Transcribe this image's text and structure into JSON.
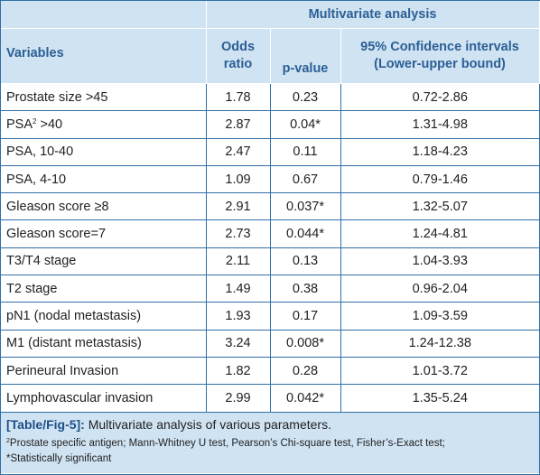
{
  "header": {
    "group_title": "Multivariate analysis",
    "col_variables": "Variables",
    "col_odds_line1": "Odds",
    "col_odds_line2": "ratio",
    "col_pvalue": "p-value",
    "col_ci_line1": "95% Confidence intervals",
    "col_ci_line2": "(Lower-upper bound)"
  },
  "rows": [
    {
      "variable": "Prostate size >45",
      "odds": "1.78",
      "p": "0.23",
      "ci": "0.72-2.86"
    },
    {
      "variable": "PSA",
      "sup": "2",
      "suffix": " >40",
      "odds": "2.87",
      "p": "0.04*",
      "ci": "1.31-4.98"
    },
    {
      "variable": "PSA, 10-40",
      "odds": "2.47",
      "p": "0.11",
      "ci": "1.18-4.23"
    },
    {
      "variable": "PSA, 4-10",
      "odds": "1.09",
      "p": "0.67",
      "ci": "0.79-1.46"
    },
    {
      "variable": "Gleason score ≥8",
      "odds": "2.91",
      "p": "0.037*",
      "ci": "1.32-5.07"
    },
    {
      "variable": "Gleason score=7",
      "odds": "2.73",
      "p": "0.044*",
      "ci": "1.24-4.81"
    },
    {
      "variable": "T3/T4 stage",
      "odds": "2.11",
      "p": "0.13",
      "ci": "1.04-3.93"
    },
    {
      "variable": "T2 stage",
      "odds": "1.49",
      "p": "0.38",
      "ci": "0.96-2.04"
    },
    {
      "variable": "pN1 (nodal metastasis)",
      "odds": "1.93",
      "p": "0.17",
      "ci": "1.09-3.59"
    },
    {
      "variable": "M1 (distant metastasis)",
      "odds": "3.24",
      "p": "0.008*",
      "ci": "1.24-12.38"
    },
    {
      "variable": "Perineural Invasion",
      "odds": "1.82",
      "p": "0.28",
      "ci": "1.01-3.72"
    },
    {
      "variable": "Lymphovascular invasion",
      "odds": "2.99",
      "p": "0.042*",
      "ci": "1.35-5.24"
    }
  ],
  "footer": {
    "caption_label": "[Table/Fig-5]:",
    "caption_text": " Multivariate analysis of various parameters.",
    "note1_sup": "2",
    "note1_text": "Prostate specific antigen; Mann-Whitney U test, Pearson’s Chi-square test, Fisher’s-Exact test;",
    "note2_text": "*Statistically significant"
  }
}
